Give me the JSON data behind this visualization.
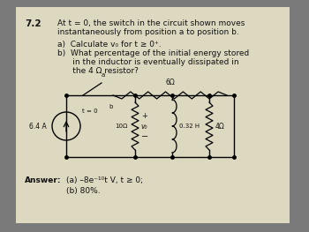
{
  "problem_number": "7.2",
  "title_line1": "At t = 0, the switch in the circuit shown moves",
  "title_line2": "instantaneously from position a to position b.",
  "part_a": "a)  Calculate v₀ for t ≥ 0⁺.",
  "part_b_line1": "b)  What percentage of the initial energy stored",
  "part_b_line2": "      in the inductor is eventually dissipated in",
  "part_b_line3": "      the 4 Ω resistor?",
  "answer_label": "Answer:",
  "answer_a": "(a) –8e⁻¹⁰t V, t ≥ 0;",
  "answer_b": "(b) 80%.",
  "bg_color": "#ddd8c0",
  "outer_bg": "#7a7a7a",
  "text_color": "#111111",
  "cs_label": "6.4 A",
  "r1_label": "6Ω",
  "r2_label": "10Ω",
  "ind_label": "0.32 H",
  "r3_label": "4Ω",
  "t0_label": "t = 0",
  "va_label": "a",
  "vb_label": "b",
  "vplus": "+",
  "vminus": "−",
  "vout": "v₀"
}
